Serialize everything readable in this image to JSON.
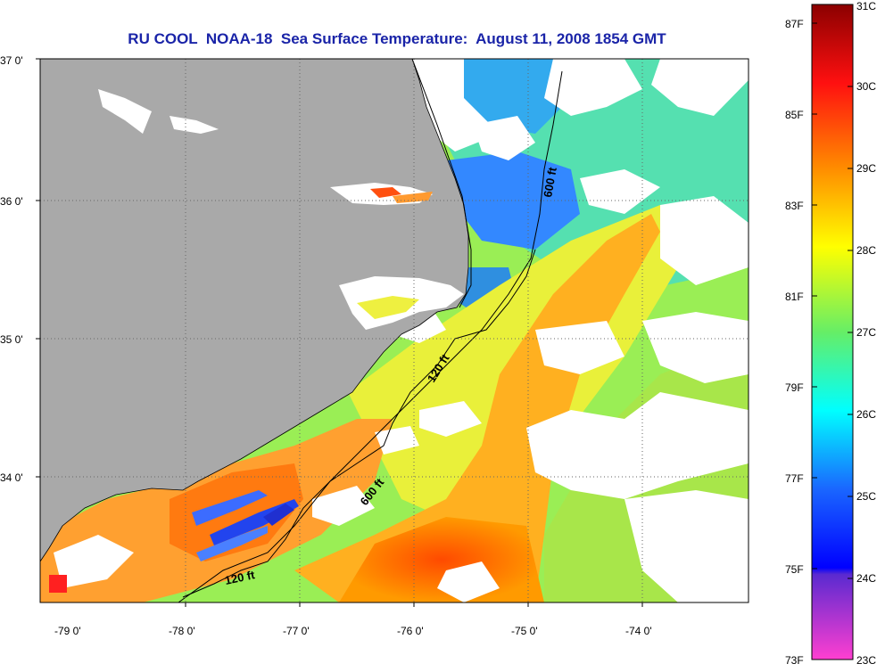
{
  "title": "RU COOL  NOAA-18  Sea Surface Temperature:  August 11, 2008 1854 GMT",
  "map": {
    "lat_ticks": [
      {
        "value": 37,
        "label": "37 0'"
      },
      {
        "value": 36,
        "label": "36 0'"
      },
      {
        "value": 35,
        "label": "35 0'"
      },
      {
        "value": 34,
        "label": "34 0'"
      }
    ],
    "lon_ticks": [
      {
        "value": -79,
        "label": "-79 0'"
      },
      {
        "value": -78,
        "label": "-78 0'"
      },
      {
        "value": -77,
        "label": "-77 0'"
      },
      {
        "value": -76,
        "label": "-76 0'"
      },
      {
        "value": -75,
        "label": "-75 0'"
      },
      {
        "value": -74,
        "label": "-74 0'"
      }
    ],
    "contour_labels": [
      {
        "name": "label-600ft-north",
        "text": "600 ft"
      },
      {
        "name": "label-120ft-mid",
        "text": "120 ft"
      },
      {
        "name": "label-600ft-south",
        "text": "600 ft"
      },
      {
        "name": "label-120ft-south",
        "text": "120 ft"
      }
    ],
    "colors": {
      "land": "#a9a9a9",
      "cloud": "#ffffff"
    }
  },
  "colorbar": {
    "celsius": [
      "31C",
      "30C",
      "29C",
      "28C",
      "27C",
      "26C",
      "25C",
      "24C",
      "23C"
    ],
    "fahrenheit": [
      "87F",
      "85F",
      "83F",
      "81F",
      "79F",
      "77F",
      "75F",
      "73F"
    ]
  }
}
